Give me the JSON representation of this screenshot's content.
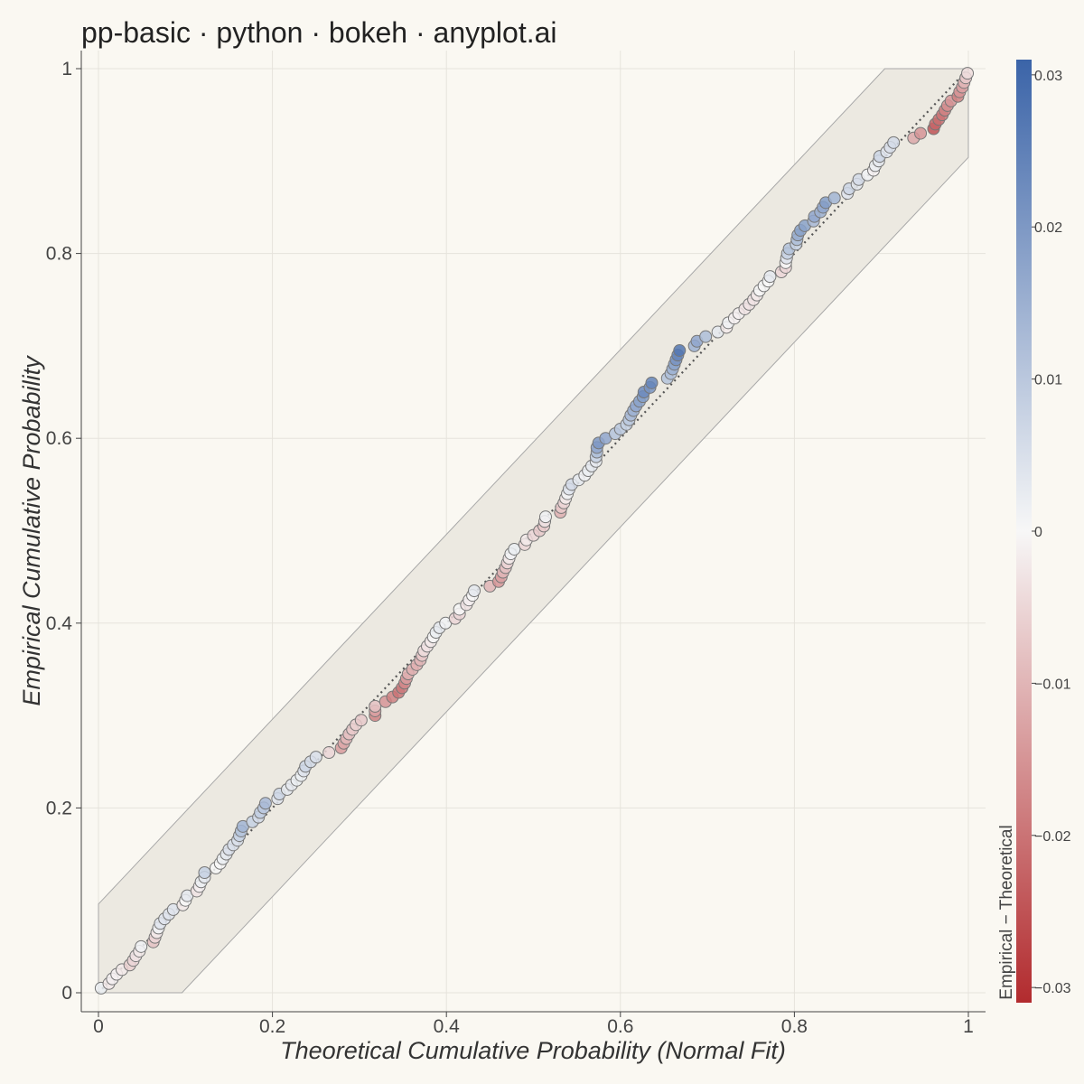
{
  "chart_data": {
    "type": "scatter",
    "title": "pp-basic · python · bokeh · anyplot.ai",
    "xlabel": "Theoretical Cumulative Probability (Normal Fit)",
    "ylabel": "Empirical Cumulative Probability",
    "xlim": [
      0,
      1
    ],
    "ylim": [
      0,
      1
    ],
    "x_ticks": [
      "0",
      "0.2",
      "0.4",
      "0.6",
      "0.8",
      "1"
    ],
    "y_ticks": [
      "0",
      "0.2",
      "0.4",
      "0.6",
      "0.8",
      "1"
    ],
    "grid": true,
    "band_halfwidth": 0.096,
    "reference_line": "y = x",
    "colorbar": {
      "label": "Empirical − Theoretical",
      "range": [
        -0.031,
        0.031
      ],
      "ticks": [
        "−0.03",
        "−0.02",
        "−0.01",
        "0",
        "0.01",
        "0.02",
        "0.03"
      ],
      "tick_values": [
        -0.03,
        -0.02,
        -0.01,
        0,
        0.01,
        0.02,
        0.03
      ],
      "colors": {
        "low": "#b22b2e",
        "mid": "#f7f7f7",
        "high": "#3b64a8"
      }
    },
    "band_color": "#ece9e1",
    "band_edge_color": "#a8a8a8",
    "point_edge_color": "#777777",
    "points": [
      [
        0.003,
        0.005
      ],
      [
        0.012,
        0.01
      ],
      [
        0.016,
        0.015
      ],
      [
        0.021,
        0.02
      ],
      [
        0.027,
        0.025
      ],
      [
        0.036,
        0.03
      ],
      [
        0.04,
        0.035
      ],
      [
        0.043,
        0.04
      ],
      [
        0.047,
        0.045
      ],
      [
        0.049,
        0.05
      ],
      [
        0.063,
        0.055
      ],
      [
        0.065,
        0.06
      ],
      [
        0.067,
        0.065
      ],
      [
        0.069,
        0.07
      ],
      [
        0.071,
        0.075
      ],
      [
        0.076,
        0.08
      ],
      [
        0.081,
        0.085
      ],
      [
        0.086,
        0.09
      ],
      [
        0.097,
        0.095
      ],
      [
        0.1,
        0.1
      ],
      [
        0.102,
        0.105
      ],
      [
        0.113,
        0.11
      ],
      [
        0.116,
        0.115
      ],
      [
        0.118,
        0.12
      ],
      [
        0.122,
        0.125
      ],
      [
        0.122,
        0.13
      ],
      [
        0.135,
        0.135
      ],
      [
        0.14,
        0.14
      ],
      [
        0.143,
        0.145
      ],
      [
        0.147,
        0.15
      ],
      [
        0.15,
        0.155
      ],
      [
        0.155,
        0.16
      ],
      [
        0.16,
        0.165
      ],
      [
        0.162,
        0.17
      ],
      [
        0.164,
        0.175
      ],
      [
        0.166,
        0.18
      ],
      [
        0.177,
        0.185
      ],
      [
        0.184,
        0.19
      ],
      [
        0.186,
        0.195
      ],
      [
        0.19,
        0.2
      ],
      [
        0.192,
        0.205
      ],
      [
        0.206,
        0.21
      ],
      [
        0.208,
        0.215
      ],
      [
        0.217,
        0.22
      ],
      [
        0.222,
        0.225
      ],
      [
        0.228,
        0.23
      ],
      [
        0.233,
        0.235
      ],
      [
        0.236,
        0.24
      ],
      [
        0.238,
        0.245
      ],
      [
        0.244,
        0.25
      ],
      [
        0.25,
        0.255
      ],
      [
        0.265,
        0.26
      ],
      [
        0.279,
        0.265
      ],
      [
        0.282,
        0.27
      ],
      [
        0.285,
        0.275
      ],
      [
        0.288,
        0.28
      ],
      [
        0.292,
        0.285
      ],
      [
        0.296,
        0.29
      ],
      [
        0.302,
        0.295
      ],
      [
        0.318,
        0.3
      ],
      [
        0.318,
        0.305
      ],
      [
        0.318,
        0.31
      ],
      [
        0.33,
        0.315
      ],
      [
        0.338,
        0.32
      ],
      [
        0.345,
        0.325
      ],
      [
        0.349,
        0.33
      ],
      [
        0.352,
        0.335
      ],
      [
        0.354,
        0.34
      ],
      [
        0.356,
        0.345
      ],
      [
        0.361,
        0.35
      ],
      [
        0.366,
        0.355
      ],
      [
        0.37,
        0.36
      ],
      [
        0.372,
        0.365
      ],
      [
        0.374,
        0.37
      ],
      [
        0.378,
        0.375
      ],
      [
        0.382,
        0.38
      ],
      [
        0.385,
        0.385
      ],
      [
        0.388,
        0.39
      ],
      [
        0.392,
        0.395
      ],
      [
        0.399,
        0.4
      ],
      [
        0.41,
        0.405
      ],
      [
        0.415,
        0.41
      ],
      [
        0.415,
        0.415
      ],
      [
        0.423,
        0.42
      ],
      [
        0.426,
        0.425
      ],
      [
        0.43,
        0.43
      ],
      [
        0.432,
        0.435
      ],
      [
        0.45,
        0.44
      ],
      [
        0.46,
        0.445
      ],
      [
        0.463,
        0.45
      ],
      [
        0.465,
        0.455
      ],
      [
        0.468,
        0.46
      ],
      [
        0.47,
        0.465
      ],
      [
        0.472,
        0.47
      ],
      [
        0.474,
        0.475
      ],
      [
        0.478,
        0.48
      ],
      [
        0.49,
        0.485
      ],
      [
        0.492,
        0.49
      ],
      [
        0.5,
        0.495
      ],
      [
        0.507,
        0.5
      ],
      [
        0.512,
        0.505
      ],
      [
        0.513,
        0.51
      ],
      [
        0.514,
        0.515
      ],
      [
        0.531,
        0.52
      ],
      [
        0.532,
        0.525
      ],
      [
        0.535,
        0.53
      ],
      [
        0.537,
        0.535
      ],
      [
        0.539,
        0.54
      ],
      [
        0.541,
        0.545
      ],
      [
        0.544,
        0.55
      ],
      [
        0.552,
        0.555
      ],
      [
        0.559,
        0.56
      ],
      [
        0.563,
        0.565
      ],
      [
        0.567,
        0.57
      ],
      [
        0.572,
        0.575
      ],
      [
        0.572,
        0.58
      ],
      [
        0.573,
        0.585
      ],
      [
        0.573,
        0.59
      ],
      [
        0.575,
        0.595
      ],
      [
        0.583,
        0.6
      ],
      [
        0.594,
        0.605
      ],
      [
        0.6,
        0.61
      ],
      [
        0.607,
        0.615
      ],
      [
        0.61,
        0.62
      ],
      [
        0.612,
        0.625
      ],
      [
        0.615,
        0.63
      ],
      [
        0.618,
        0.635
      ],
      [
        0.622,
        0.64
      ],
      [
        0.626,
        0.645
      ],
      [
        0.627,
        0.65
      ],
      [
        0.634,
        0.655
      ],
      [
        0.636,
        0.66
      ],
      [
        0.654,
        0.665
      ],
      [
        0.658,
        0.67
      ],
      [
        0.66,
        0.675
      ],
      [
        0.662,
        0.68
      ],
      [
        0.664,
        0.685
      ],
      [
        0.666,
        0.69
      ],
      [
        0.668,
        0.695
      ],
      [
        0.685,
        0.7
      ],
      [
        0.688,
        0.705
      ],
      [
        0.698,
        0.71
      ],
      [
        0.712,
        0.715
      ],
      [
        0.722,
        0.72
      ],
      [
        0.724,
        0.725
      ],
      [
        0.731,
        0.73
      ],
      [
        0.736,
        0.735
      ],
      [
        0.743,
        0.74
      ],
      [
        0.748,
        0.745
      ],
      [
        0.753,
        0.75
      ],
      [
        0.757,
        0.755
      ],
      [
        0.76,
        0.76
      ],
      [
        0.765,
        0.765
      ],
      [
        0.77,
        0.77
      ],
      [
        0.772,
        0.775
      ],
      [
        0.785,
        0.78
      ],
      [
        0.79,
        0.785
      ],
      [
        0.79,
        0.79
      ],
      [
        0.791,
        0.795
      ],
      [
        0.792,
        0.8
      ],
      [
        0.794,
        0.805
      ],
      [
        0.802,
        0.81
      ],
      [
        0.803,
        0.815
      ],
      [
        0.804,
        0.82
      ],
      [
        0.807,
        0.825
      ],
      [
        0.812,
        0.83
      ],
      [
        0.822,
        0.835
      ],
      [
        0.823,
        0.84
      ],
      [
        0.83,
        0.845
      ],
      [
        0.833,
        0.85
      ],
      [
        0.836,
        0.855
      ],
      [
        0.846,
        0.86
      ],
      [
        0.861,
        0.865
      ],
      [
        0.863,
        0.87
      ],
      [
        0.872,
        0.875
      ],
      [
        0.874,
        0.88
      ],
      [
        0.884,
        0.885
      ],
      [
        0.891,
        0.89
      ],
      [
        0.893,
        0.895
      ],
      [
        0.897,
        0.9
      ],
      [
        0.898,
        0.905
      ],
      [
        0.906,
        0.91
      ],
      [
        0.91,
        0.915
      ],
      [
        0.914,
        0.92
      ],
      [
        0.937,
        0.925
      ],
      [
        0.945,
        0.93
      ],
      [
        0.96,
        0.935
      ],
      [
        0.962,
        0.94
      ],
      [
        0.966,
        0.945
      ],
      [
        0.97,
        0.95
      ],
      [
        0.973,
        0.955
      ],
      [
        0.976,
        0.96
      ],
      [
        0.98,
        0.965
      ],
      [
        0.988,
        0.97
      ],
      [
        0.99,
        0.975
      ],
      [
        0.993,
        0.98
      ],
      [
        0.995,
        0.985
      ],
      [
        0.997,
        0.99
      ],
      [
        0.999,
        0.995
      ]
    ]
  }
}
